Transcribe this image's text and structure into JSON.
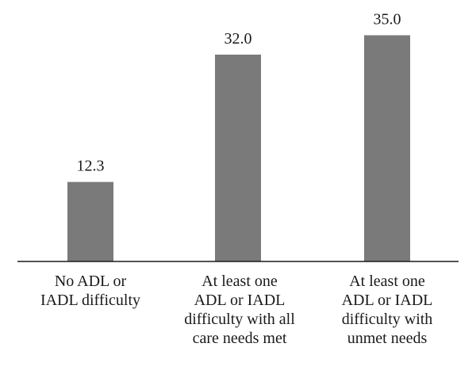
{
  "chart_data": {
    "type": "bar",
    "categories": [
      "No ADL or\nIADL difficulty",
      "At least one\nADL or IADL\ndifficulty with all\ncare needs met",
      "At least one\nADL or IADL\ndifficulty with\nunmet needs"
    ],
    "values": [
      12.3,
      32.0,
      35.0
    ],
    "data_labels": [
      "12.3",
      "32.0",
      "35.0"
    ],
    "title": "",
    "xlabel": "",
    "ylabel": "",
    "ylim": [
      0,
      38
    ],
    "grid": false,
    "legend": "none",
    "bar_color": "#7a7a7a",
    "axis_color": "#1a1a1a",
    "text_color": "#1a1a1a"
  }
}
